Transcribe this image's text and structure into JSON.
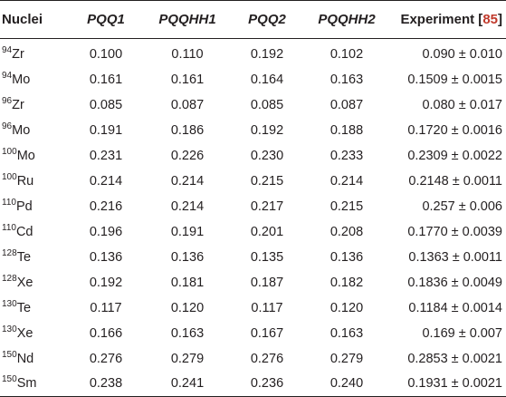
{
  "headers": {
    "nuclei": "Nuclei",
    "pqq1": "PQQ1",
    "pqqhh1": "PQQHH1",
    "pqq2": "PQQ2",
    "pqqhh2": "PQQHH2",
    "experiment_label": "Experiment",
    "experiment_ref": "85"
  },
  "plus_minus": "±",
  "rows": [
    {
      "mass": "94",
      "element": "Zr",
      "pqq1": "0.100",
      "pqqhh1": "0.110",
      "pqq2": "0.192",
      "pqqhh2": "0.102",
      "exp_value": "0.090",
      "exp_error": "0.010"
    },
    {
      "mass": "94",
      "element": "Mo",
      "pqq1": "0.161",
      "pqqhh1": "0.161",
      "pqq2": "0.164",
      "pqqhh2": "0.163",
      "exp_value": "0.1509",
      "exp_error": "0.0015"
    },
    {
      "mass": "96",
      "element": "Zr",
      "pqq1": "0.085",
      "pqqhh1": "0.087",
      "pqq2": "0.085",
      "pqqhh2": "0.087",
      "exp_value": "0.080",
      "exp_error": "0.017"
    },
    {
      "mass": "96",
      "element": "Mo",
      "pqq1": "0.191",
      "pqqhh1": "0.186",
      "pqq2": "0.192",
      "pqqhh2": "0.188",
      "exp_value": "0.1720",
      "exp_error": "0.0016"
    },
    {
      "mass": "100",
      "element": "Mo",
      "pqq1": "0.231",
      "pqqhh1": "0.226",
      "pqq2": "0.230",
      "pqqhh2": "0.233",
      "exp_value": "0.2309",
      "exp_error": "0.0022"
    },
    {
      "mass": "100",
      "element": "Ru",
      "pqq1": "0.214",
      "pqqhh1": "0.214",
      "pqq2": "0.215",
      "pqqhh2": "0.214",
      "exp_value": "0.2148",
      "exp_error": "0.0011"
    },
    {
      "mass": "110",
      "element": "Pd",
      "pqq1": "0.216",
      "pqqhh1": "0.214",
      "pqq2": "0.217",
      "pqqhh2": "0.215",
      "exp_value": "0.257",
      "exp_error": "0.006"
    },
    {
      "mass": "110",
      "element": "Cd",
      "pqq1": "0.196",
      "pqqhh1": "0.191",
      "pqq2": "0.201",
      "pqqhh2": "0.208",
      "exp_value": "0.1770",
      "exp_error": "0.0039"
    },
    {
      "mass": "128",
      "element": "Te",
      "pqq1": "0.136",
      "pqqhh1": "0.136",
      "pqq2": "0.135",
      "pqqhh2": "0.136",
      "exp_value": "0.1363",
      "exp_error": "0.0011"
    },
    {
      "mass": "128",
      "element": "Xe",
      "pqq1": "0.192",
      "pqqhh1": "0.181",
      "pqq2": "0.187",
      "pqqhh2": "0.182",
      "exp_value": "0.1836",
      "exp_error": "0.0049"
    },
    {
      "mass": "130",
      "element": "Te",
      "pqq1": "0.117",
      "pqqhh1": "0.120",
      "pqq2": "0.117",
      "pqqhh2": "0.120",
      "exp_value": "0.1184",
      "exp_error": "0.0014"
    },
    {
      "mass": "130",
      "element": "Xe",
      "pqq1": "0.166",
      "pqqhh1": "0.163",
      "pqq2": "0.167",
      "pqqhh2": "0.163",
      "exp_value": "0.169",
      "exp_error": "0.007"
    },
    {
      "mass": "150",
      "element": "Nd",
      "pqq1": "0.276",
      "pqqhh1": "0.279",
      "pqq2": "0.276",
      "pqqhh2": "0.279",
      "exp_value": "0.2853",
      "exp_error": "0.0021"
    },
    {
      "mass": "150",
      "element": "Sm",
      "pqq1": "0.238",
      "pqqhh1": "0.241",
      "pqq2": "0.236",
      "pqqhh2": "0.240",
      "exp_value": "0.1931",
      "exp_error": "0.0021"
    }
  ]
}
